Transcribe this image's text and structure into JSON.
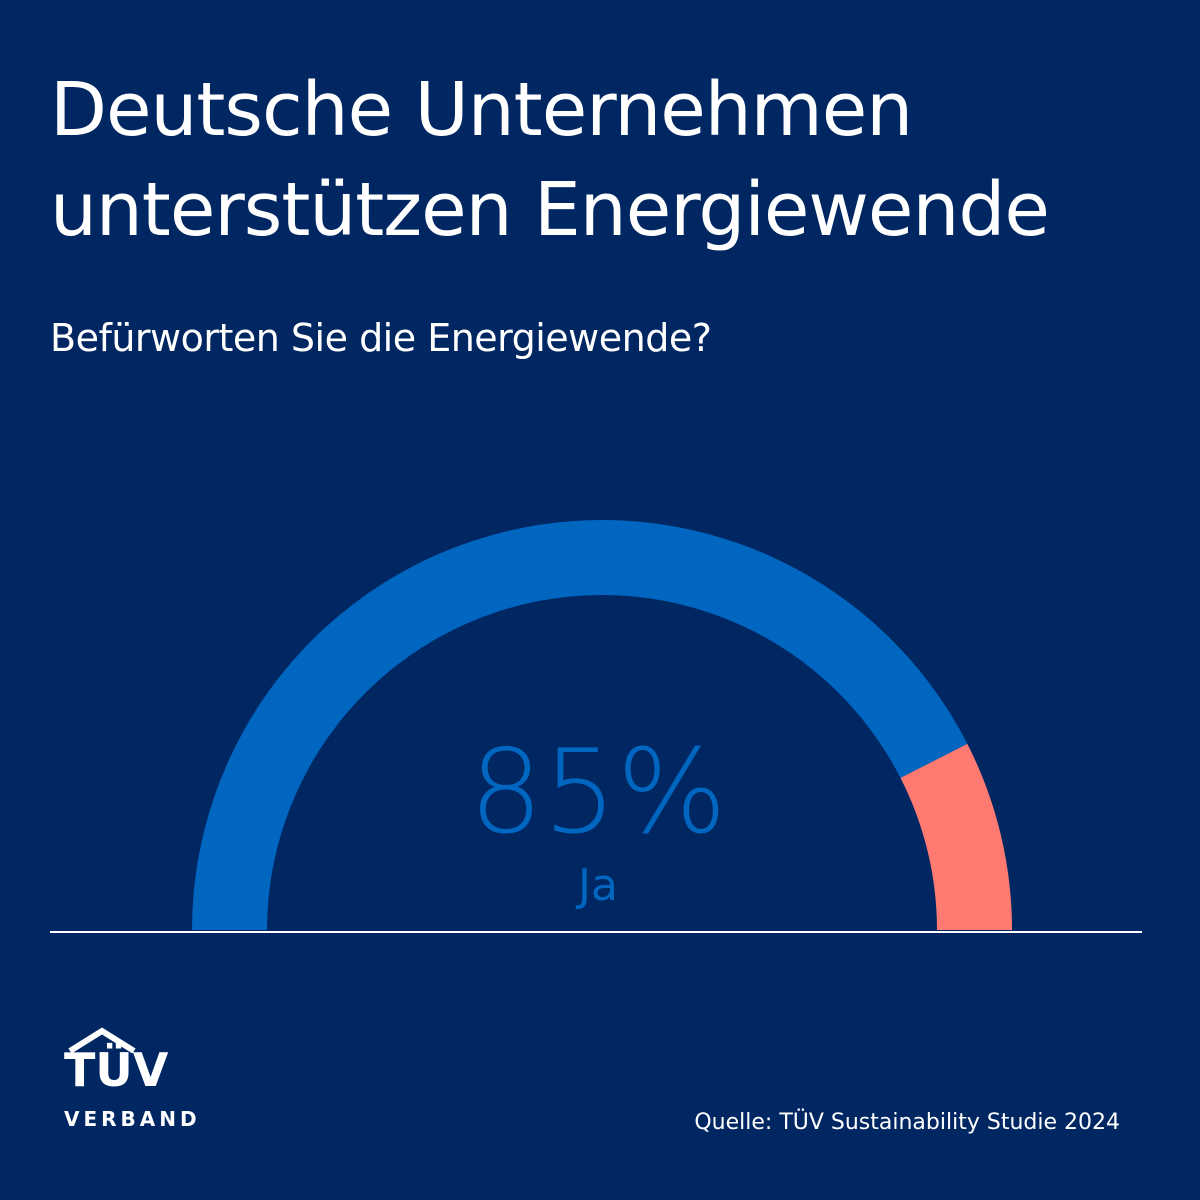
{
  "header": {
    "title_line1": "Deutsche Unternehmen",
    "title_line2": "unterstützen Energiewende",
    "subtitle": "Befürworten Sie die Energiewende?"
  },
  "chart_data": {
    "type": "pie",
    "style": "half-donut gauge",
    "slices": [
      {
        "label": "Ja",
        "value": 85,
        "color": "#0066c0"
      },
      {
        "label": "",
        "value": 15,
        "color": "#ff7b72"
      }
    ],
    "center_value": "85%",
    "center_label": "Ja",
    "title": "Befürworten Sie die Energiewende?"
  },
  "footer": {
    "source": "Quelle: TÜV Sustainability Studie 2024",
    "logo_word": "TÜV",
    "logo_sub": "VERBAND"
  },
  "colors": {
    "background": "#012763",
    "text": "#ffffff",
    "yes": "#0066c0",
    "no": "#ff7b72"
  }
}
